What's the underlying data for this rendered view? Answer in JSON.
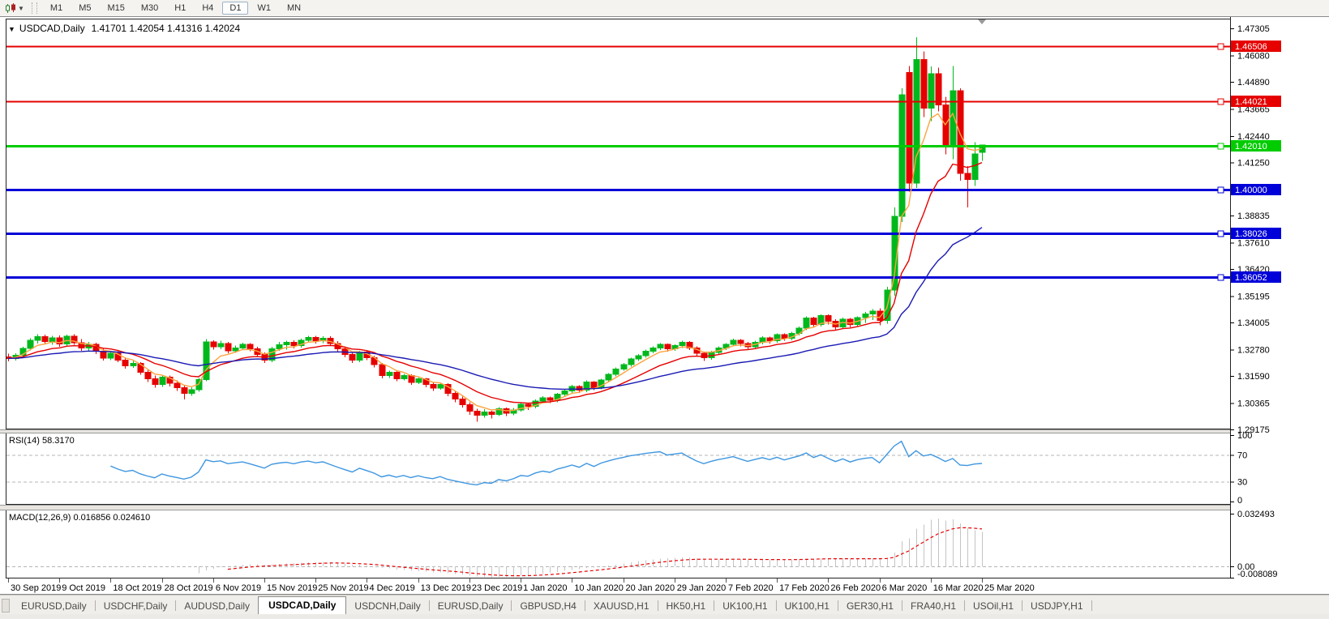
{
  "toolbar": {
    "chart_type_tool": "candlestick-chart-icon",
    "timeframes": [
      {
        "label": "M1",
        "active": false
      },
      {
        "label": "M5",
        "active": false
      },
      {
        "label": "M15",
        "active": false
      },
      {
        "label": "M30",
        "active": false
      },
      {
        "label": "H1",
        "active": false
      },
      {
        "label": "H4",
        "active": false
      },
      {
        "label": "D1",
        "active": true
      },
      {
        "label": "W1",
        "active": false
      },
      {
        "label": "MN",
        "active": false
      }
    ]
  },
  "chart": {
    "symbol": "USDCAD,Daily",
    "collapse_icon": "▼",
    "ohlc_text": "1.41701 1.42054 1.41316 1.42024",
    "open": "1.41701",
    "high": "1.42054",
    "low": "1.41316",
    "close": "1.42024"
  },
  "rsi_panel": {
    "label": "RSI(14) 58.3170",
    "value": 58.317,
    "axis_labels": [
      "100",
      "70",
      "30",
      "0"
    ]
  },
  "macd_panel": {
    "label": "MACD(12,26,9) 0.016856 0.024610",
    "main_value": 0.016856,
    "signal_value": 0.02461,
    "axis_labels": [
      "0.032493",
      "0.00",
      "-0.008089"
    ]
  },
  "tabs": [
    {
      "label": "EURUSD,Daily",
      "active": false
    },
    {
      "label": "USDCHF,Daily",
      "active": false
    },
    {
      "label": "AUDUSD,Daily",
      "active": false
    },
    {
      "label": "USDCAD,Daily",
      "active": true
    },
    {
      "label": "USDCNH,Daily",
      "active": false
    },
    {
      "label": "EURUSD,Daily",
      "active": false
    },
    {
      "label": "GBPUSD,H4",
      "active": false
    },
    {
      "label": "XAUUSD,H1",
      "active": false
    },
    {
      "label": "HK50,H1",
      "active": false
    },
    {
      "label": "UK100,H1",
      "active": false
    },
    {
      "label": "UK100,H1",
      "active": false
    },
    {
      "label": "GER30,H1",
      "active": false
    },
    {
      "label": "FRA40,H1",
      "active": false
    },
    {
      "label": "USOil,H1",
      "active": false
    },
    {
      "label": "USDJPY,H1",
      "active": false
    }
  ],
  "chart_data": {
    "type": "candlestick",
    "title": "USDCAD,Daily",
    "up_color": "#00B81C",
    "down_color": "#E60000",
    "price_axis": {
      "min": 1.29175,
      "max": 1.47305,
      "ticks": [
        "1.47305",
        "1.46080",
        "1.44890",
        "1.43665",
        "1.42440",
        "1.41250",
        "1.38835",
        "1.37610",
        "1.36420",
        "1.35195",
        "1.34005",
        "1.32780",
        "1.31590",
        "1.30365",
        "1.29175"
      ]
    },
    "x_labels": [
      "30 Sep 2019",
      "9 Oct 2019",
      "18 Oct 2019",
      "28 Oct 2019",
      "6 Nov 2019",
      "15 Nov 2019",
      "25 Nov 2019",
      "4 Dec 2019",
      "13 Dec 2019",
      "23 Dec 2019",
      "1 Jan 2020",
      "10 Jan 2020",
      "20 Jan 2020",
      "29 Jan 2020",
      "7 Feb 2020",
      "17 Feb 2020",
      "26 Feb 2020",
      "6 Mar 2020",
      "16 Mar 2020",
      "25 Mar 2020"
    ],
    "hlines": [
      {
        "price": "1.46506",
        "value": 1.46506,
        "color": "#E60000",
        "width": 2
      },
      {
        "price": "1.44021",
        "value": 1.44021,
        "color": "#E60000",
        "width": 2
      },
      {
        "price": "1.42010",
        "value": 1.4201,
        "color": "#00CC00",
        "width": 3
      },
      {
        "price": "1.40000",
        "value": 1.4,
        "color": "#0000D8",
        "width": 3
      },
      {
        "price": "1.38026",
        "value": 1.38026,
        "color": "#0000D8",
        "width": 3
      },
      {
        "price": "1.36052",
        "value": 1.36052,
        "color": "#0000D8",
        "width": 3
      }
    ],
    "moving_averages": [
      {
        "name": "fast",
        "period": 5,
        "method": "ema",
        "color": "#FFA33F"
      },
      {
        "name": "mid",
        "period": 13,
        "method": "ema",
        "color": "#E60000"
      },
      {
        "name": "slow",
        "period": 34,
        "method": "ema",
        "color": "#1A1AB4"
      }
    ],
    "indicators": [
      {
        "type": "RSI",
        "period": 14,
        "value": 58.317,
        "color": "#3E96E0",
        "levels": [
          70,
          30
        ]
      },
      {
        "type": "MACD",
        "fast": 12,
        "slow": 26,
        "signal": 9,
        "main": 0.016856,
        "signal_value": 0.02461,
        "histogram_color": "#C4C4C4",
        "signal_color": "#E60000",
        "axis_max": 0.032493,
        "axis_min": -0.008089
      }
    ],
    "candles": [
      [
        1.3245,
        1.326,
        1.3225,
        1.3238
      ],
      [
        1.3238,
        1.3262,
        1.3228,
        1.3252
      ],
      [
        1.3252,
        1.329,
        1.324,
        1.3283
      ],
      [
        1.3283,
        1.333,
        1.3275,
        1.332
      ],
      [
        1.332,
        1.3348,
        1.3305,
        1.3336
      ],
      [
        1.3336,
        1.3345,
        1.3302,
        1.3315
      ],
      [
        1.3315,
        1.334,
        1.33,
        1.3332
      ],
      [
        1.3332,
        1.3342,
        1.329,
        1.3303
      ],
      [
        1.3303,
        1.3345,
        1.3295,
        1.3338
      ],
      [
        1.3338,
        1.3347,
        1.33,
        1.331
      ],
      [
        1.331,
        1.3325,
        1.3272,
        1.3285
      ],
      [
        1.3285,
        1.3312,
        1.327,
        1.3302
      ],
      [
        1.3302,
        1.331,
        1.3258,
        1.327
      ],
      [
        1.327,
        1.3282,
        1.3228,
        1.324
      ],
      [
        1.324,
        1.3268,
        1.323,
        1.3262
      ],
      [
        1.3262,
        1.327,
        1.3222,
        1.3231
      ],
      [
        1.3231,
        1.3244,
        1.3192,
        1.3205
      ],
      [
        1.3205,
        1.3226,
        1.3195,
        1.3216
      ],
      [
        1.3216,
        1.3222,
        1.3165,
        1.3176
      ],
      [
        1.3176,
        1.3188,
        1.3132,
        1.3146
      ],
      [
        1.3146,
        1.316,
        1.3105,
        1.3121
      ],
      [
        1.3121,
        1.316,
        1.311,
        1.3154
      ],
      [
        1.3154,
        1.3161,
        1.3112,
        1.3126
      ],
      [
        1.3126,
        1.3138,
        1.3092,
        1.3106
      ],
      [
        1.3106,
        1.3118,
        1.3052,
        1.3081
      ],
      [
        1.3081,
        1.3108,
        1.307,
        1.3096
      ],
      [
        1.3096,
        1.315,
        1.3088,
        1.3142
      ],
      [
        1.3142,
        1.3325,
        1.3136,
        1.3312
      ],
      [
        1.3312,
        1.332,
        1.3278,
        1.3291
      ],
      [
        1.3291,
        1.3318,
        1.328,
        1.3306
      ],
      [
        1.3306,
        1.3312,
        1.3262,
        1.3272
      ],
      [
        1.3272,
        1.3296,
        1.3264,
        1.3286
      ],
      [
        1.3286,
        1.331,
        1.3278,
        1.3301
      ],
      [
        1.3301,
        1.3308,
        1.327,
        1.3281
      ],
      [
        1.3281,
        1.329,
        1.3245,
        1.3256
      ],
      [
        1.3256,
        1.3266,
        1.3218,
        1.323
      ],
      [
        1.323,
        1.329,
        1.3222,
        1.3282
      ],
      [
        1.3282,
        1.3312,
        1.3272,
        1.33
      ],
      [
        1.33,
        1.3318,
        1.3278,
        1.3311
      ],
      [
        1.3311,
        1.332,
        1.3284,
        1.3296
      ],
      [
        1.3296,
        1.3328,
        1.3288,
        1.3321
      ],
      [
        1.3321,
        1.334,
        1.331,
        1.3333
      ],
      [
        1.3333,
        1.3341,
        1.3306,
        1.3318
      ],
      [
        1.3318,
        1.3338,
        1.3308,
        1.333
      ],
      [
        1.333,
        1.3338,
        1.3295,
        1.3306
      ],
      [
        1.3306,
        1.3316,
        1.3268,
        1.3281
      ],
      [
        1.3281,
        1.3292,
        1.3244,
        1.3256
      ],
      [
        1.3256,
        1.3268,
        1.3218,
        1.323
      ],
      [
        1.323,
        1.3272,
        1.3222,
        1.3267
      ],
      [
        1.3267,
        1.3274,
        1.323,
        1.3241
      ],
      [
        1.3241,
        1.325,
        1.3198,
        1.3211
      ],
      [
        1.3211,
        1.3218,
        1.3148,
        1.316
      ],
      [
        1.316,
        1.3182,
        1.315,
        1.3176
      ],
      [
        1.3176,
        1.3181,
        1.3135,
        1.3146
      ],
      [
        1.3146,
        1.3168,
        1.3138,
        1.3161
      ],
      [
        1.3161,
        1.3166,
        1.3118,
        1.313
      ],
      [
        1.313,
        1.3152,
        1.3122,
        1.3146
      ],
      [
        1.3146,
        1.315,
        1.3108,
        1.312
      ],
      [
        1.312,
        1.3128,
        1.3092,
        1.3104
      ],
      [
        1.3104,
        1.3126,
        1.3096,
        1.3121
      ],
      [
        1.3121,
        1.3126,
        1.3068,
        1.308
      ],
      [
        1.308,
        1.309,
        1.304,
        1.3054
      ],
      [
        1.3054,
        1.3066,
        1.3016,
        1.3029
      ],
      [
        1.3029,
        1.304,
        1.2984,
        1.2999
      ],
      [
        1.2999,
        1.301,
        1.2952,
        1.2981
      ],
      [
        1.2981,
        1.3008,
        1.297,
        1.2996
      ],
      [
        1.2996,
        1.3002,
        1.2966,
        1.2985
      ],
      [
        1.2985,
        1.3018,
        1.2978,
        1.3011
      ],
      [
        1.3011,
        1.3016,
        1.2978,
        1.2991
      ],
      [
        1.2991,
        1.3014,
        1.2982,
        1.3006
      ],
      [
        1.3006,
        1.3036,
        1.2998,
        1.303
      ],
      [
        1.303,
        1.3036,
        1.3006,
        1.3021
      ],
      [
        1.3021,
        1.3052,
        1.3012,
        1.3046
      ],
      [
        1.3046,
        1.3068,
        1.3036,
        1.3061
      ],
      [
        1.3061,
        1.3066,
        1.3036,
        1.3049
      ],
      [
        1.3049,
        1.3082,
        1.304,
        1.3076
      ],
      [
        1.3076,
        1.3098,
        1.3066,
        1.3091
      ],
      [
        1.3091,
        1.3118,
        1.3082,
        1.3111
      ],
      [
        1.3111,
        1.3116,
        1.3082,
        1.3094
      ],
      [
        1.3094,
        1.3138,
        1.3086,
        1.3131
      ],
      [
        1.3131,
        1.3136,
        1.3094,
        1.3106
      ],
      [
        1.3106,
        1.3146,
        1.3098,
        1.3141
      ],
      [
        1.3141,
        1.3172,
        1.3132,
        1.3166
      ],
      [
        1.3166,
        1.3198,
        1.3158,
        1.3191
      ],
      [
        1.3191,
        1.3218,
        1.3182,
        1.3211
      ],
      [
        1.3211,
        1.3242,
        1.3202,
        1.3236
      ],
      [
        1.3236,
        1.3258,
        1.3226,
        1.3251
      ],
      [
        1.3251,
        1.3278,
        1.3242,
        1.3271
      ],
      [
        1.3271,
        1.3292,
        1.3261,
        1.3286
      ],
      [
        1.3286,
        1.3308,
        1.3276,
        1.3301
      ],
      [
        1.3301,
        1.3306,
        1.3268,
        1.3281
      ],
      [
        1.3281,
        1.3302,
        1.3272,
        1.3296
      ],
      [
        1.3296,
        1.3318,
        1.3286,
        1.3311
      ],
      [
        1.3311,
        1.3316,
        1.3276,
        1.3286
      ],
      [
        1.3286,
        1.3292,
        1.3248,
        1.3261
      ],
      [
        1.3261,
        1.3266,
        1.3226,
        1.3241
      ],
      [
        1.3241,
        1.3272,
        1.3232,
        1.3266
      ],
      [
        1.3266,
        1.3292,
        1.3256,
        1.3286
      ],
      [
        1.3286,
        1.3308,
        1.3276,
        1.3301
      ],
      [
        1.3301,
        1.3328,
        1.3292,
        1.3321
      ],
      [
        1.3321,
        1.3326,
        1.3292,
        1.3306
      ],
      [
        1.3306,
        1.3312,
        1.3278,
        1.3291
      ],
      [
        1.3291,
        1.3318,
        1.3282,
        1.3311
      ],
      [
        1.3311,
        1.3338,
        1.3302,
        1.3331
      ],
      [
        1.3331,
        1.3336,
        1.3306,
        1.3319
      ],
      [
        1.3319,
        1.3352,
        1.331,
        1.3346
      ],
      [
        1.3346,
        1.3351,
        1.3318,
        1.3329
      ],
      [
        1.3329,
        1.3358,
        1.332,
        1.3352
      ],
      [
        1.3352,
        1.3382,
        1.3342,
        1.3376
      ],
      [
        1.3376,
        1.3428,
        1.3366,
        1.3421
      ],
      [
        1.3421,
        1.3426,
        1.3378,
        1.3391
      ],
      [
        1.3391,
        1.3438,
        1.3382,
        1.3432
      ],
      [
        1.3432,
        1.3438,
        1.3392,
        1.3406
      ],
      [
        1.3406,
        1.3416,
        1.3366,
        1.3381
      ],
      [
        1.3381,
        1.3422,
        1.3372,
        1.3416
      ],
      [
        1.3416,
        1.3421,
        1.3378,
        1.3391
      ],
      [
        1.3391,
        1.3428,
        1.3382,
        1.3422
      ],
      [
        1.3422,
        1.3448,
        1.3398,
        1.344
      ],
      [
        1.344,
        1.3462,
        1.3412,
        1.3452
      ],
      [
        1.3452,
        1.3465,
        1.3388,
        1.341
      ],
      [
        1.341,
        1.3562,
        1.3396,
        1.3548
      ],
      [
        1.3548,
        1.392,
        1.3522,
        1.388
      ],
      [
        1.388,
        1.446,
        1.3855,
        1.443
      ],
      [
        1.453,
        1.456,
        1.3992,
        1.403
      ],
      [
        1.403,
        1.469,
        1.4008,
        1.459
      ],
      [
        1.459,
        1.4625,
        1.433,
        1.437
      ],
      [
        1.437,
        1.4558,
        1.431,
        1.4525
      ],
      [
        1.4525,
        1.4552,
        1.4355,
        1.4385
      ],
      [
        1.4385,
        1.442,
        1.416,
        1.4195
      ],
      [
        1.4195,
        1.456,
        1.4139,
        1.4448
      ],
      [
        1.4448,
        1.446,
        1.4042,
        1.4075
      ],
      [
        1.4075,
        1.4108,
        1.3921,
        1.4048
      ],
      [
        1.4048,
        1.4215,
        1.4018,
        1.4162
      ],
      [
        1.417,
        1.4205,
        1.4132,
        1.4202
      ]
    ]
  }
}
